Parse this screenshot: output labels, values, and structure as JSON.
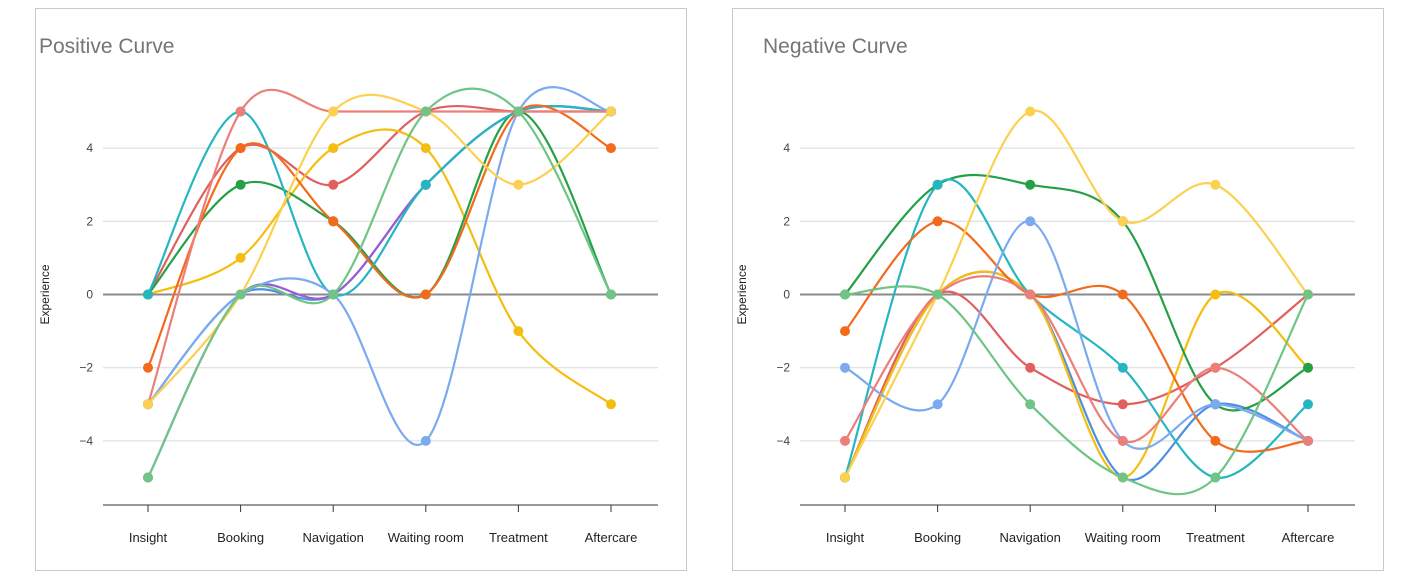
{
  "chart_data": [
    {
      "type": "line",
      "title": "Positive Curve",
      "ylabel": "Experience",
      "xlabel": "",
      "categories": [
        "Insight",
        "Booking",
        "Navigation",
        "Waiting room",
        "Treatment",
        "Aftercare"
      ],
      "ylim": [
        -5.8,
        5.2
      ],
      "yticks": [
        -4,
        -2,
        0,
        2,
        4
      ],
      "grid": true,
      "smooth": true,
      "series": [
        {
          "color": "#4e8fe0",
          "values": [
            -3,
            0,
            0,
            3,
            5,
            5
          ]
        },
        {
          "color": "#e06060",
          "values": [
            0,
            4,
            3,
            5,
            5,
            5
          ]
        },
        {
          "color": "#f4bd10",
          "values": [
            0,
            1,
            4,
            4,
            -1,
            -3
          ]
        },
        {
          "color": "#25a046",
          "values": [
            0,
            3,
            2,
            0,
            5,
            0
          ]
        },
        {
          "color": "#9a5cd6",
          "values": [
            -5,
            0,
            0,
            3,
            5,
            5
          ]
        },
        {
          "color": "#26b6c2",
          "values": [
            0,
            5,
            0,
            3,
            5,
            5
          ]
        },
        {
          "color": "#f26b1d",
          "values": [
            -2,
            4,
            2,
            0,
            5,
            4
          ]
        },
        {
          "color": "#7baaf0",
          "values": [
            -3,
            0,
            0,
            -4,
            5,
            5
          ]
        },
        {
          "color": "#ec7f7a",
          "values": [
            -3,
            5,
            5,
            5,
            5,
            5
          ]
        },
        {
          "color": "#fcd050",
          "values": [
            -3,
            0,
            5,
            5,
            3,
            5
          ]
        },
        {
          "color": "#6fc486",
          "values": [
            -5,
            0,
            0,
            5,
            5,
            0
          ]
        }
      ]
    },
    {
      "type": "line",
      "title": "Negative Curve",
      "ylabel": "Experience",
      "xlabel": "",
      "categories": [
        "Insight",
        "Booking",
        "Navigation",
        "Waiting room",
        "Treatment",
        "Aftercare"
      ],
      "ylim": [
        -5.8,
        5.2
      ],
      "yticks": [
        -4,
        -2,
        0,
        2,
        4
      ],
      "grid": true,
      "smooth": true,
      "series": [
        {
          "color": "#4e8fe0",
          "values": [
            -5,
            0,
            0,
            -5,
            -3,
            -4
          ]
        },
        {
          "color": "#e06060",
          "values": [
            -5,
            0,
            -2,
            -3,
            -2,
            0
          ]
        },
        {
          "color": "#f4bd10",
          "values": [
            -5,
            0,
            0,
            -5,
            0,
            -2
          ]
        },
        {
          "color": "#25a046",
          "values": [
            0,
            3,
            3,
            2,
            -3,
            -2
          ]
        },
        {
          "color": "#26b6c2",
          "values": [
            -5,
            3,
            0,
            -2,
            -5,
            -3
          ]
        },
        {
          "color": "#f26b1d",
          "values": [
            -1,
            2,
            0,
            0,
            -4,
            -4
          ]
        },
        {
          "color": "#7baaf0",
          "values": [
            -2,
            -3,
            2,
            -4,
            -3,
            -4
          ]
        },
        {
          "color": "#ec7f7a",
          "values": [
            -4,
            0,
            0,
            -4,
            -2,
            -4
          ]
        },
        {
          "color": "#fcd050",
          "values": [
            -5,
            0,
            5,
            2,
            3,
            0
          ]
        },
        {
          "color": "#6fc486",
          "values": [
            0,
            0,
            -3,
            -5,
            -5,
            0
          ]
        }
      ]
    }
  ]
}
